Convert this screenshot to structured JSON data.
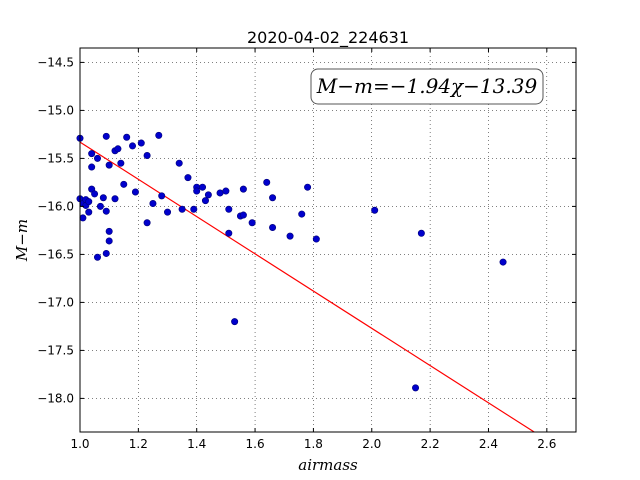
{
  "chart_data": {
    "type": "scatter",
    "title": "2020-04-02_224631",
    "xlabel": "airmass",
    "ylabel": "M−m",
    "xlim": [
      1.0,
      2.7
    ],
    "ylim": [
      -18.35,
      -14.35
    ],
    "y_inverted": true,
    "grid": true,
    "xticks": [
      1.0,
      1.2,
      1.4,
      1.6,
      1.8,
      2.0,
      2.2,
      2.4,
      2.6
    ],
    "xtick_labels": [
      "1.0",
      "1.2",
      "1.4",
      "1.6",
      "1.8",
      "2.0",
      "2.2",
      "2.4",
      "2.6"
    ],
    "yticks": [
      -14.5,
      -15.0,
      -15.5,
      -16.0,
      -16.5,
      -17.0,
      -17.5,
      -18.0
    ],
    "ytick_labels": [
      "−14.5",
      "−15.0",
      "−15.5",
      "−16.0",
      "−16.5",
      "−17.0",
      "−17.5",
      "−18.0"
    ],
    "annotation": "M−m=−1.94χ−13.39",
    "annotation_position": "top-right",
    "point_color": "#0000cc",
    "fit_color": "#ff0000",
    "fit": {
      "slope": -1.94,
      "intercept": -13.39
    },
    "points": [
      {
        "x": 1.0,
        "y": -15.29
      },
      {
        "x": 1.0,
        "y": -15.92
      },
      {
        "x": 1.01,
        "y": -16.12
      },
      {
        "x": 1.01,
        "y": -15.97
      },
      {
        "x": 1.02,
        "y": -15.93
      },
      {
        "x": 1.02,
        "y": -15.99
      },
      {
        "x": 1.03,
        "y": -16.06
      },
      {
        "x": 1.03,
        "y": -15.95
      },
      {
        "x": 1.04,
        "y": -15.45
      },
      {
        "x": 1.04,
        "y": -15.59
      },
      {
        "x": 1.04,
        "y": -15.82
      },
      {
        "x": 1.05,
        "y": -15.87
      },
      {
        "x": 1.06,
        "y": -16.53
      },
      {
        "x": 1.06,
        "y": -15.5
      },
      {
        "x": 1.07,
        "y": -16.0
      },
      {
        "x": 1.08,
        "y": -15.91
      },
      {
        "x": 1.09,
        "y": -16.05
      },
      {
        "x": 1.09,
        "y": -15.27
      },
      {
        "x": 1.09,
        "y": -16.49
      },
      {
        "x": 1.1,
        "y": -16.26
      },
      {
        "x": 1.1,
        "y": -16.36
      },
      {
        "x": 1.1,
        "y": -15.57
      },
      {
        "x": 1.12,
        "y": -15.42
      },
      {
        "x": 1.12,
        "y": -15.92
      },
      {
        "x": 1.13,
        "y": -15.4
      },
      {
        "x": 1.14,
        "y": -15.55
      },
      {
        "x": 1.15,
        "y": -15.77
      },
      {
        "x": 1.16,
        "y": -15.28
      },
      {
        "x": 1.18,
        "y": -15.37
      },
      {
        "x": 1.19,
        "y": -15.85
      },
      {
        "x": 1.21,
        "y": -15.34
      },
      {
        "x": 1.23,
        "y": -15.47
      },
      {
        "x": 1.23,
        "y": -16.17
      },
      {
        "x": 1.25,
        "y": -15.97
      },
      {
        "x": 1.27,
        "y": -15.26
      },
      {
        "x": 1.28,
        "y": -15.89
      },
      {
        "x": 1.3,
        "y": -16.06
      },
      {
        "x": 1.34,
        "y": -15.55
      },
      {
        "x": 1.35,
        "y": -16.03
      },
      {
        "x": 1.37,
        "y": -15.7
      },
      {
        "x": 1.39,
        "y": -16.03
      },
      {
        "x": 1.4,
        "y": -15.8
      },
      {
        "x": 1.4,
        "y": -15.84
      },
      {
        "x": 1.42,
        "y": -15.8
      },
      {
        "x": 1.43,
        "y": -15.94
      },
      {
        "x": 1.44,
        "y": -15.88
      },
      {
        "x": 1.48,
        "y": -15.86
      },
      {
        "x": 1.5,
        "y": -15.84
      },
      {
        "x": 1.51,
        "y": -16.03
      },
      {
        "x": 1.51,
        "y": -16.28
      },
      {
        "x": 1.53,
        "y": -17.2
      },
      {
        "x": 1.55,
        "y": -16.1
      },
      {
        "x": 1.56,
        "y": -15.82
      },
      {
        "x": 1.56,
        "y": -16.09
      },
      {
        "x": 1.59,
        "y": -16.17
      },
      {
        "x": 1.64,
        "y": -15.75
      },
      {
        "x": 1.66,
        "y": -16.22
      },
      {
        "x": 1.66,
        "y": -15.91
      },
      {
        "x": 1.72,
        "y": -16.31
      },
      {
        "x": 1.76,
        "y": -16.08
      },
      {
        "x": 1.78,
        "y": -15.8
      },
      {
        "x": 1.81,
        "y": -16.34
      },
      {
        "x": 2.01,
        "y": -16.04
      },
      {
        "x": 2.15,
        "y": -17.89
      },
      {
        "x": 2.17,
        "y": -16.28
      },
      {
        "x": 2.45,
        "y": -16.58
      }
    ]
  }
}
